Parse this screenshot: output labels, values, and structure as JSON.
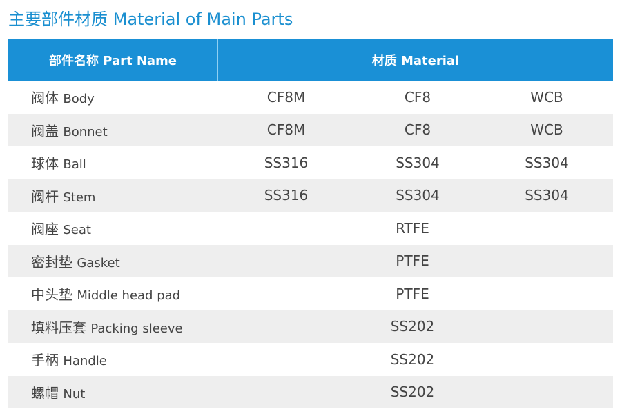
{
  "title": "主要部件材质 Material of Main Parts",
  "header": {
    "part_name": "部件名称 Part Name",
    "material": "材质 Material"
  },
  "rows": [
    {
      "zh": "阀体",
      "en": "Body",
      "materials": [
        "CF8M",
        "CF8",
        "WCB"
      ]
    },
    {
      "zh": "阀盖",
      "en": "Bonnet",
      "materials": [
        "CF8M",
        "CF8",
        "WCB"
      ]
    },
    {
      "zh": "球体",
      "en": "Ball",
      "materials": [
        "SS316",
        "SS304",
        "SS304"
      ]
    },
    {
      "zh": "阀杆",
      "en": "Stem",
      "materials": [
        "SS316",
        "SS304",
        "SS304"
      ]
    },
    {
      "zh": "阀座",
      "en": "Seat",
      "material": "RTFE"
    },
    {
      "zh": "密封垫",
      "en": "Gasket",
      "material": "PTFE"
    },
    {
      "zh": "中头垫",
      "en": "Middle head pad",
      "material": "PTFE"
    },
    {
      "zh": "填料压套",
      "en": "Packing sleeve",
      "material": "SS202"
    },
    {
      "zh": "手柄",
      "en": "Handle",
      "material": "SS202"
    },
    {
      "zh": "螺帽",
      "en": "Nut",
      "material": "SS202"
    }
  ]
}
